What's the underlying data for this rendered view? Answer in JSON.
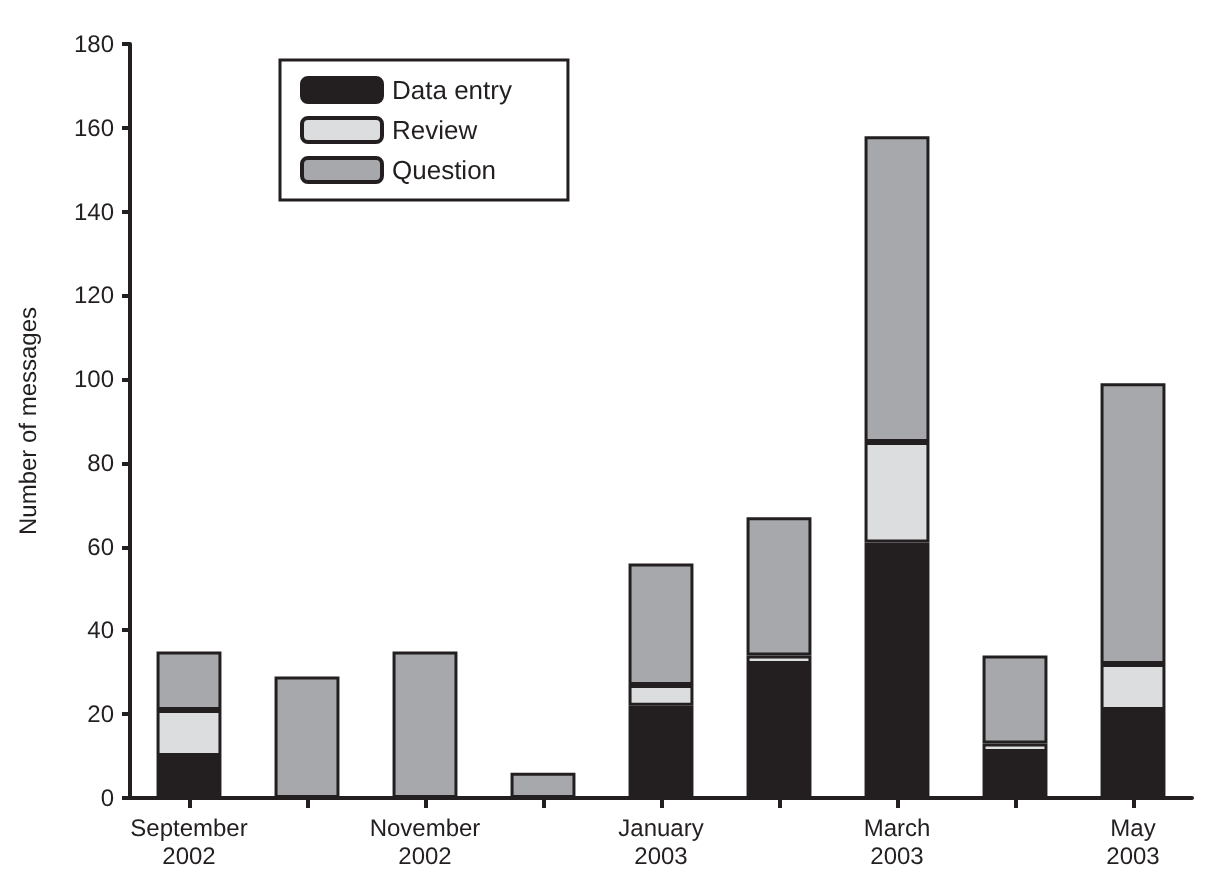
{
  "chart_data": {
    "type": "bar",
    "stacked": true,
    "ylabel": "Number of messages",
    "categories": [
      "September\n2002",
      null,
      "November\n2002",
      null,
      "January\n2003",
      null,
      "March\n2003",
      null,
      "May\n2003"
    ],
    "series": [
      {
        "name": "Data entry",
        "color": "#231f20",
        "values": [
          10,
          0,
          0,
          0,
          22,
          32,
          61,
          11,
          21
        ]
      },
      {
        "name": "Review",
        "color": "#dcdddf",
        "values": [
          11,
          0,
          0,
          0,
          5,
          2,
          24,
          2,
          11
        ]
      },
      {
        "name": "Question",
        "color": "#a7a8ab",
        "values": [
          14,
          29,
          35,
          6,
          29,
          33,
          73,
          21,
          67
        ]
      }
    ],
    "ylim": [
      0,
      180
    ],
    "yticks": [
      0,
      20,
      40,
      60,
      80,
      100,
      120,
      140,
      160,
      180
    ],
    "grid": false,
    "legend": "top left"
  }
}
